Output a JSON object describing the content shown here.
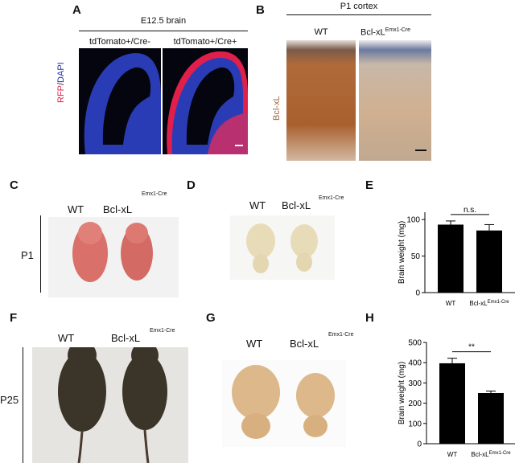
{
  "panel_letters": {
    "a": "A",
    "b": "B",
    "c": "C",
    "d": "D",
    "e": "E",
    "f": "F",
    "g": "G",
    "h": "H"
  },
  "panelA": {
    "header": "E12.5 brain",
    "cond1": "tdTomato+/Cre-",
    "cond2": "tdTomato+/Cre+",
    "ylabel_red": "RFP",
    "ylabel_sep": "/",
    "ylabel_blue": "DAPI"
  },
  "panelB": {
    "header": "P1 cortex",
    "wt": "WT",
    "ko": "Bcl-xL",
    "ko_sup": "Emx1-Cre",
    "ylabel": "Bcl-xL"
  },
  "panelC": {
    "wt": "WT",
    "ko": "Bcl-xL",
    "ko_sup": "Emx1-Cre",
    "age": "P1"
  },
  "panelD": {
    "wt": "WT",
    "ko": "Bcl-xL",
    "ko_sup": "Emx1-Cre"
  },
  "panelF": {
    "wt": "WT",
    "ko": "Bcl-xL",
    "ko_sup": "Emx1-Cre",
    "age": "P25"
  },
  "panelG": {
    "wt": "WT",
    "ko": "Bcl-xL",
    "ko_sup": "Emx1-Cre"
  },
  "chart_data": [
    {
      "type": "bar",
      "panel": "E",
      "categories": [
        "WT",
        "Bcl-xL Emx1-Cre"
      ],
      "cat_main": [
        "WT",
        "Bcl-xL"
      ],
      "cat_sup": [
        "",
        "Emx1-Cre"
      ],
      "values": [
        93,
        85
      ],
      "errors": [
        5,
        8
      ],
      "ylabel": "Brain weight (mg)",
      "ylim": [
        0,
        110
      ],
      "yticks": [
        0,
        50,
        100
      ],
      "significance": "n.s.",
      "bar_color": "#000000"
    },
    {
      "type": "bar",
      "panel": "H",
      "categories": [
        "WT",
        "Bcl-xL Emx1-Cre"
      ],
      "cat_main": [
        "WT",
        "Bcl-xL"
      ],
      "cat_sup": [
        "",
        "Emx1-Cre"
      ],
      "values": [
        397,
        250
      ],
      "errors": [
        25,
        10
      ],
      "ylabel": "Brain weight (mg)",
      "ylim": [
        0,
        500
      ],
      "yticks": [
        0,
        100,
        200,
        300,
        400,
        500
      ],
      "significance": "**",
      "bar_color": "#000000"
    }
  ],
  "colors": {
    "dapi": "#2233a8",
    "rfp": "#e0204a",
    "ihc_brown": "#a0623a",
    "ihc_blue": "#4a6fa0",
    "pup": "#d9706a",
    "brain_p1": "#e8dcb8",
    "brain_p25": "#dcb88a",
    "mouse": "#3a3528"
  }
}
